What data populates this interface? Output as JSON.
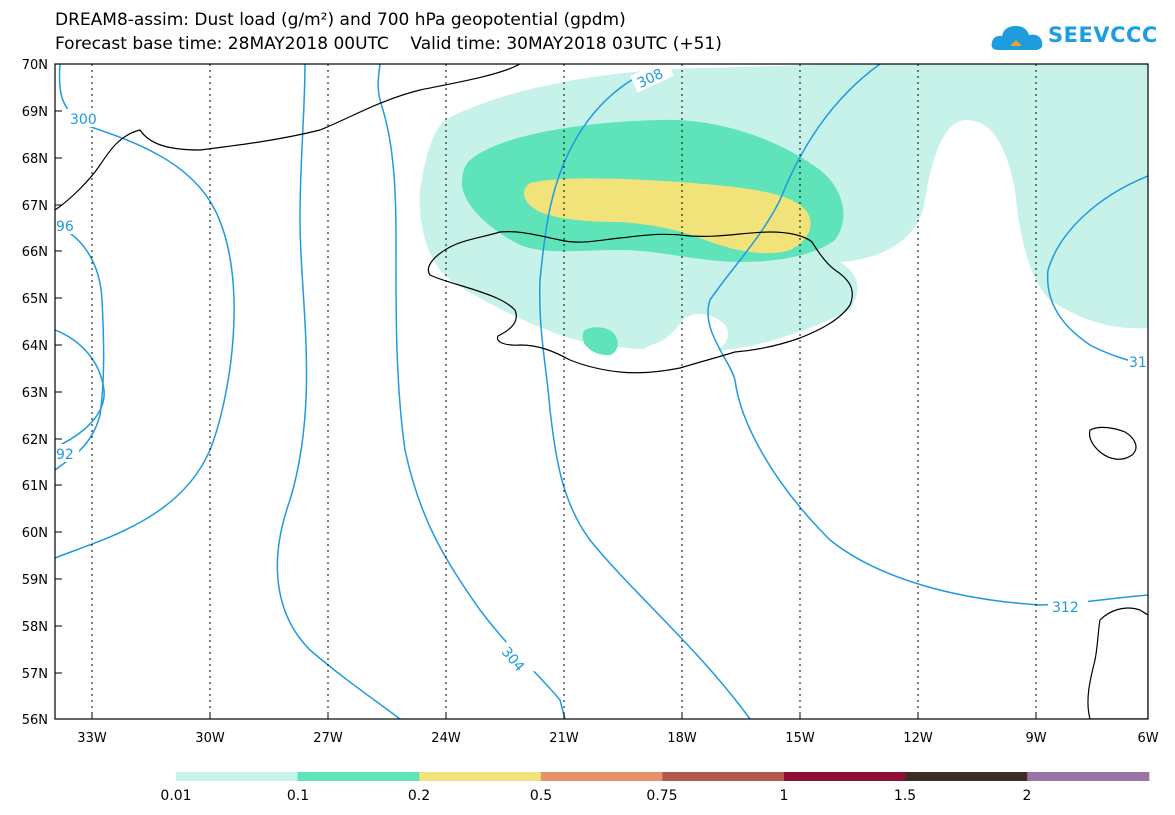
{
  "header": {
    "line1": "DREAM8-assim: Dust load (g/m²) and 700 hPa geopotential (gpdm)",
    "line2": "Forecast base time: 28MAY2018 00UTC    Valid time: 30MAY2018 03UTC (+51)"
  },
  "logo": {
    "text": "SEEVCCC",
    "icon": "cloud-icon",
    "color": "#1d9de0"
  },
  "axes": {
    "lat_labels": [
      "70N",
      "69N",
      "68N",
      "67N",
      "66N",
      "65N",
      "64N",
      "63N",
      "62N",
      "61N",
      "60N",
      "59N",
      "58N",
      "57N",
      "56N"
    ],
    "lon_labels": [
      "33W",
      "30W",
      "27W",
      "24W",
      "21W",
      "18W",
      "15W",
      "12W",
      "9W",
      "6W"
    ]
  },
  "contour_labels": [
    "300",
    "308",
    "96",
    "92",
    "304",
    "312",
    "31"
  ],
  "colorbar": {
    "labels": [
      "0.01",
      "0.1",
      "0.2",
      "0.5",
      "0.75",
      "1",
      "1.5",
      "2"
    ],
    "colors": [
      "#c6f2ea",
      "#5fe3b8",
      "#f1e37a",
      "#e9916a",
      "#b4574c",
      "#8f0e35",
      "#3c2d23",
      "#9a73a5"
    ]
  },
  "colors": {
    "contour": "#1f9ae0",
    "coast": "#000000"
  }
}
